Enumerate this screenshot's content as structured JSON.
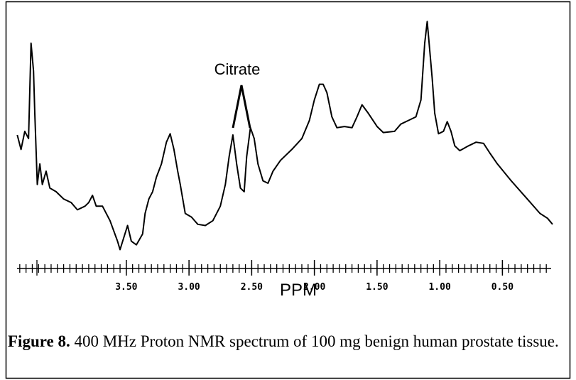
{
  "chart_data": {
    "type": "line",
    "annotation": "Citrate",
    "xlabel": "PPM",
    "caption_label": "Figure 8.",
    "caption_text": "400 MHz Proton NMR spectrum of 100 mg benign human prostate tissue.",
    "color": "#000000",
    "xlim": [
      4.4,
      0.1
    ],
    "ylim": [
      0,
      100
    ],
    "xticks": [
      {
        "value": 3.5,
        "label": "3.50"
      },
      {
        "value": 3.0,
        "label": "3.00"
      },
      {
        "value": 2.5,
        "label": "2.50"
      },
      {
        "value": 2.0,
        "label": "2.00"
      },
      {
        "value": 1.5,
        "label": "1.50"
      },
      {
        "value": 1.0,
        "label": "1.00"
      },
      {
        "value": 0.5,
        "label": "0.50"
      }
    ],
    "x": [
      4.37,
      4.34,
      4.31,
      4.28,
      4.26,
      4.24,
      4.23,
      4.21,
      4.19,
      4.17,
      4.14,
      4.11,
      4.06,
      4.0,
      3.94,
      3.89,
      3.83,
      3.8,
      3.77,
      3.74,
      3.69,
      3.63,
      3.57,
      3.55,
      3.52,
      3.49,
      3.46,
      3.42,
      3.37,
      3.35,
      3.32,
      3.29,
      3.26,
      3.22,
      3.18,
      3.15,
      3.12,
      3.09,
      3.07,
      3.03,
      2.98,
      2.93,
      2.87,
      2.81,
      2.75,
      2.71,
      2.68,
      2.65,
      2.62,
      2.59,
      2.56,
      2.54,
      2.51,
      2.48,
      2.45,
      2.41,
      2.37,
      2.33,
      2.27,
      2.18,
      2.1,
      2.04,
      2.0,
      1.96,
      1.93,
      1.9,
      1.86,
      1.82,
      1.76,
      1.7,
      1.66,
      1.62,
      1.57,
      1.5,
      1.45,
      1.36,
      1.31,
      1.25,
      1.19,
      1.15,
      1.12,
      1.1,
      1.09,
      1.06,
      1.04,
      1.01,
      0.97,
      0.94,
      0.91,
      0.88,
      0.84,
      0.77,
      0.71,
      0.65,
      0.6,
      0.54,
      0.43,
      0.31,
      0.2,
      0.14,
      0.1
    ],
    "values": [
      50,
      44,
      51.5,
      48.5,
      88,
      76.5,
      59,
      29.5,
      38,
      29.5,
      35,
      28,
      26.5,
      23.5,
      22,
      19,
      20.5,
      22,
      25,
      20.5,
      20.5,
      14.5,
      6,
      2.5,
      7.5,
      12.5,
      6,
      4.5,
      9,
      17.5,
      23.5,
      26.5,
      32.5,
      38,
      47,
      50.5,
      44,
      35,
      29.5,
      17.5,
      16,
      13,
      12.5,
      14.5,
      20.5,
      29.5,
      41,
      50,
      38,
      28,
      26.5,
      41,
      53,
      48.5,
      38,
      31,
      30,
      35,
      39.5,
      44,
      48.5,
      56,
      64.5,
      71,
      71,
      67.5,
      57.5,
      53,
      53.5,
      53,
      57.5,
      62.5,
      59,
      53.5,
      51,
      51.5,
      54.5,
      56,
      57.5,
      64.5,
      88,
      97,
      91,
      73.5,
      59,
      50.5,
      51.5,
      55.5,
      51.5,
      45.5,
      43.5,
      45.5,
      47,
      46.5,
      42.5,
      38,
      31,
      24,
      17.5,
      15.5,
      13
    ]
  }
}
